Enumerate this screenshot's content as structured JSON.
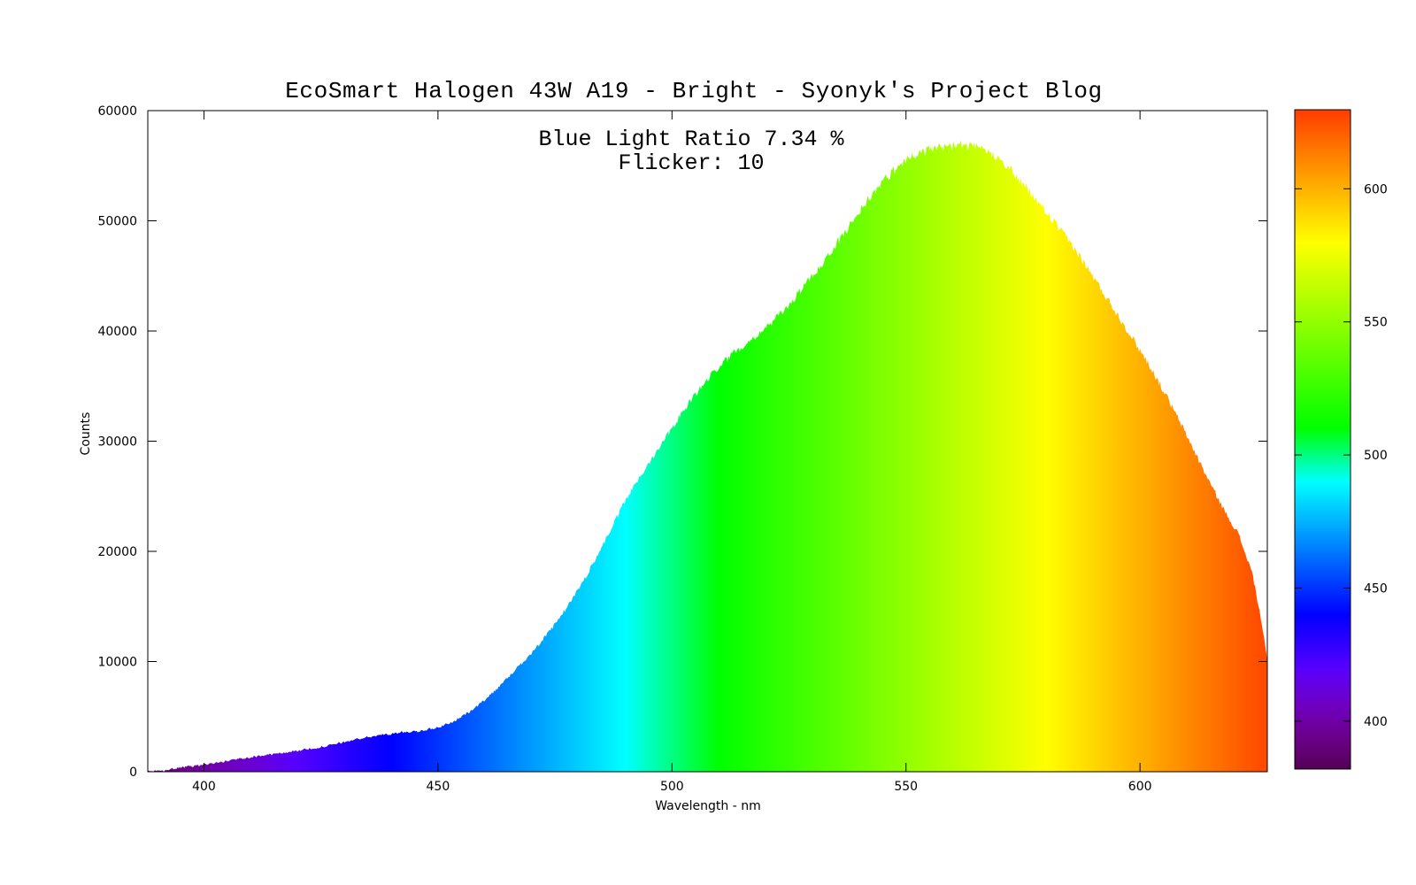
{
  "chart": {
    "title": "EcoSmart Halogen 43W A19 - Bright - Syonyk's Project Blog",
    "annotations": [
      "Blue Light Ratio 7.34 %",
      "Flicker: 10"
    ],
    "x_axis": {
      "label": "Wavelength - nm",
      "ticks": [
        400,
        450,
        500,
        550,
        600
      ],
      "range": [
        388,
        627.2
      ]
    },
    "y_axis": {
      "label": "Counts",
      "ticks": [
        0,
        10000,
        20000,
        30000,
        40000,
        50000,
        60000
      ],
      "range": [
        0,
        60000
      ]
    },
    "colorbar": {
      "ticks": [
        400,
        450,
        500,
        550,
        600
      ],
      "range": [
        382,
        629.7
      ]
    }
  },
  "chart_data": {
    "type": "area",
    "title": "EcoSmart Halogen 43W A19 - Bright - Syonyk's Project Blog",
    "xlabel": "Wavelength - nm",
    "ylabel": "Counts",
    "xlim": [
      388,
      627.2
    ],
    "ylim": [
      0,
      60000
    ],
    "grid": false,
    "legend": "none",
    "colormap": "visible-spectrum wavelength to RGB (fill colored by wavelength, colorbar 382-630 nm)",
    "annotations": [
      "Blue Light Ratio 7.34 %",
      "Flicker: 10"
    ],
    "series": [
      {
        "name": "spectral counts",
        "points": [
          [
            388,
            20
          ],
          [
            391,
            60
          ],
          [
            393,
            250
          ],
          [
            396,
            420
          ],
          [
            400,
            650
          ],
          [
            404,
            900
          ],
          [
            407,
            1150
          ],
          [
            411,
            1400
          ],
          [
            415,
            1600
          ],
          [
            419,
            1850
          ],
          [
            423,
            2100
          ],
          [
            427,
            2400
          ],
          [
            431,
            2800
          ],
          [
            435,
            3150
          ],
          [
            439,
            3400
          ],
          [
            443,
            3600
          ],
          [
            446,
            3700
          ],
          [
            450,
            4000
          ],
          [
            454,
            4700
          ],
          [
            458,
            5800
          ],
          [
            462,
            7300
          ],
          [
            466,
            9000
          ],
          [
            470,
            10800
          ],
          [
            474,
            12800
          ],
          [
            478,
            15200
          ],
          [
            482,
            18000
          ],
          [
            486,
            21200
          ],
          [
            490,
            24600
          ],
          [
            494,
            27300
          ],
          [
            498,
            30000
          ],
          [
            502,
            32500
          ],
          [
            506,
            34800
          ],
          [
            510,
            36800
          ],
          [
            514,
            38300
          ],
          [
            518,
            39600
          ],
          [
            522,
            41000
          ],
          [
            526,
            42900
          ],
          [
            530,
            45000
          ],
          [
            534,
            47200
          ],
          [
            538,
            49600
          ],
          [
            542,
            52000
          ],
          [
            546,
            54000
          ],
          [
            550,
            55600
          ],
          [
            554,
            56300
          ],
          [
            558,
            56700
          ],
          [
            562,
            56900
          ],
          [
            566,
            56500
          ],
          [
            570,
            55800
          ],
          [
            574,
            53800
          ],
          [
            578,
            51800
          ],
          [
            582,
            49700
          ],
          [
            586,
            47500
          ],
          [
            590,
            44900
          ],
          [
            594,
            42300
          ],
          [
            598,
            39600
          ],
          [
            602,
            36900
          ],
          [
            606,
            33800
          ],
          [
            610,
            30500
          ],
          [
            614,
            27000
          ],
          [
            618,
            23700
          ],
          [
            621,
            21600
          ],
          [
            624,
            18000
          ],
          [
            626,
            13500
          ],
          [
            627.2,
            10000
          ]
        ]
      }
    ]
  }
}
